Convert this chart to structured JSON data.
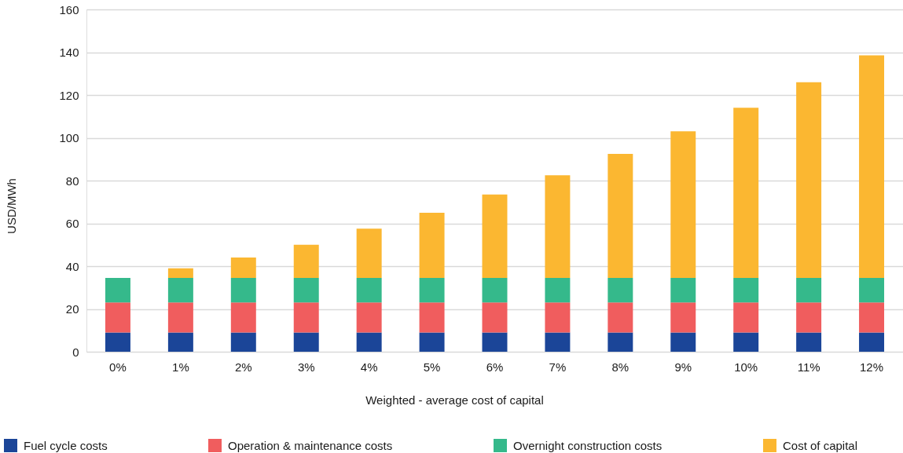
{
  "chart_data": {
    "type": "bar",
    "stacked": true,
    "xlabel": "Weighted - average cost of capital",
    "ylabel": "USD/MWh",
    "categories": [
      "0%",
      "1%",
      "2%",
      "3%",
      "4%",
      "5%",
      "6%",
      "7%",
      "8%",
      "9%",
      "10%",
      "11%",
      "12%"
    ],
    "series": [
      {
        "name": "Fuel cycle costs",
        "color": "#1b4598",
        "values": [
          9,
          9,
          9,
          9,
          9,
          9,
          9,
          9,
          9,
          9,
          9,
          9,
          9
        ]
      },
      {
        "name": "Operation & maintenance costs",
        "color": "#f05d5e",
        "values": [
          14,
          14,
          14,
          14,
          14,
          14,
          14,
          14,
          14,
          14,
          14,
          14,
          14
        ]
      },
      {
        "name": "Overnight construction costs",
        "color": "#35b98b",
        "values": [
          11.5,
          11.5,
          11.5,
          11.5,
          11.5,
          11.5,
          11.5,
          11.5,
          11.5,
          11.5,
          11.5,
          11.5,
          11.5
        ]
      },
      {
        "name": "Cost of capital",
        "color": "#fbb731",
        "values": [
          null,
          4.5,
          9.5,
          15.5,
          23,
          30.5,
          39,
          48,
          58,
          68.5,
          79.5,
          91.5,
          104
        ]
      }
    ],
    "ylim": [
      0,
      160
    ],
    "yticks": [
      0,
      20,
      40,
      60,
      80,
      100,
      120,
      140,
      160
    ],
    "grid": "y",
    "legend": "bottom"
  }
}
